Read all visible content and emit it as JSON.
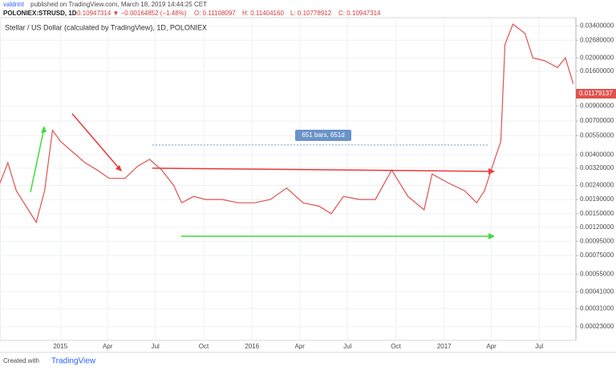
{
  "header": {
    "author": "valdrint",
    "published": "published on TradingView.com, March 18, 2019 14:44:25 CET",
    "symbol": "POLONIEX:STRUSD, 1D",
    "last": "0.10947314 ▼ −0.00164852 (−1.48%)",
    "open": "O: 0.11108097",
    "high": "H: 0.11404160",
    "low": "L: 0.10778912",
    "close": "C: 0.10947314"
  },
  "footer": {
    "created": "Created with",
    "brand": "TradingView"
  },
  "chart_data": {
    "type": "line",
    "title": "Stellar / US Dollar (calculated by TradingView), 1D, POLONIEX",
    "annotation": "651 bars, 651d",
    "price_label": "0.01179137",
    "log_scale": true,
    "grid": true,
    "xlim": [
      0,
      1097
    ],
    "ylim": [
      0.000183,
      0.039
    ],
    "xticks": [
      {
        "value": 115,
        "label": "2015"
      },
      {
        "value": 205,
        "label": "Apr"
      },
      {
        "value": 296,
        "label": "Jul"
      },
      {
        "value": 388,
        "label": "Oct"
      },
      {
        "value": 480,
        "label": "2016"
      },
      {
        "value": 571,
        "label": "Apr"
      },
      {
        "value": 662,
        "label": "Jul"
      },
      {
        "value": 754,
        "label": "Oct"
      },
      {
        "value": 846,
        "label": "2017"
      },
      {
        "value": 936,
        "label": "Apr"
      },
      {
        "value": 1027,
        "label": "Jul"
      }
    ],
    "yticks": [
      {
        "value": 0.034,
        "label": "0.03400000"
      },
      {
        "value": 0.0268,
        "label": "0.02680000"
      },
      {
        "value": 0.02,
        "label": "0.02000000"
      },
      {
        "value": 0.016,
        "label": "0.01600000"
      },
      {
        "value": 0.009,
        "label": "0.00900000"
      },
      {
        "value": 0.007,
        "label": "0.00700000"
      },
      {
        "value": 0.0055,
        "label": "0.00550000"
      },
      {
        "value": 0.004,
        "label": "0.00400000"
      },
      {
        "value": 0.0032,
        "label": "0.00320000"
      },
      {
        "value": 0.0024,
        "label": "0.00240000"
      },
      {
        "value": 0.0019,
        "label": "0.00190000"
      },
      {
        "value": 0.0015,
        "label": "0.00150000"
      },
      {
        "value": 0.0012,
        "label": "0.00120000"
      },
      {
        "value": 0.00095,
        "label": "0.00095000"
      },
      {
        "value": 0.00075,
        "label": "0.00075000"
      },
      {
        "value": 0.00055,
        "label": "0.00055000"
      },
      {
        "value": 0.00041,
        "label": "0.00041000"
      },
      {
        "value": 0.00031,
        "label": "0.00031000"
      },
      {
        "value": 0.00023,
        "label": "0.00023000"
      }
    ],
    "x": [
      0,
      15,
      31,
      54,
      69,
      85,
      100,
      115,
      138,
      162,
      185,
      208,
      238,
      262,
      285,
      308,
      331,
      346,
      369,
      392,
      423,
      454,
      485,
      515,
      546,
      577,
      608,
      631,
      654,
      685,
      715,
      746,
      777,
      808,
      823,
      854,
      885,
      908,
      923,
      938,
      954,
      962,
      977,
      1000,
      1015,
      1038,
      1062,
      1077,
      1092
    ],
    "series": [
      {
        "color": "#e0524e",
        "values": [
          0.0025,
          0.0035,
          0.0022,
          0.0016,
          0.0013,
          0.0022,
          0.006,
          0.005,
          0.0042,
          0.0035,
          0.0031,
          0.0027,
          0.0027,
          0.0033,
          0.0037,
          0.0031,
          0.0024,
          0.0018,
          0.002,
          0.0019,
          0.0019,
          0.0018,
          0.0018,
          0.0019,
          0.0023,
          0.0018,
          0.0017,
          0.0015,
          0.002,
          0.0019,
          0.0019,
          0.0031,
          0.002,
          0.0016,
          0.0029,
          0.0025,
          0.0022,
          0.0018,
          0.0022,
          0.0033,
          0.005,
          0.025,
          0.035,
          0.03,
          0.02,
          0.019,
          0.017,
          0.02,
          0.013
        ]
      }
    ]
  }
}
